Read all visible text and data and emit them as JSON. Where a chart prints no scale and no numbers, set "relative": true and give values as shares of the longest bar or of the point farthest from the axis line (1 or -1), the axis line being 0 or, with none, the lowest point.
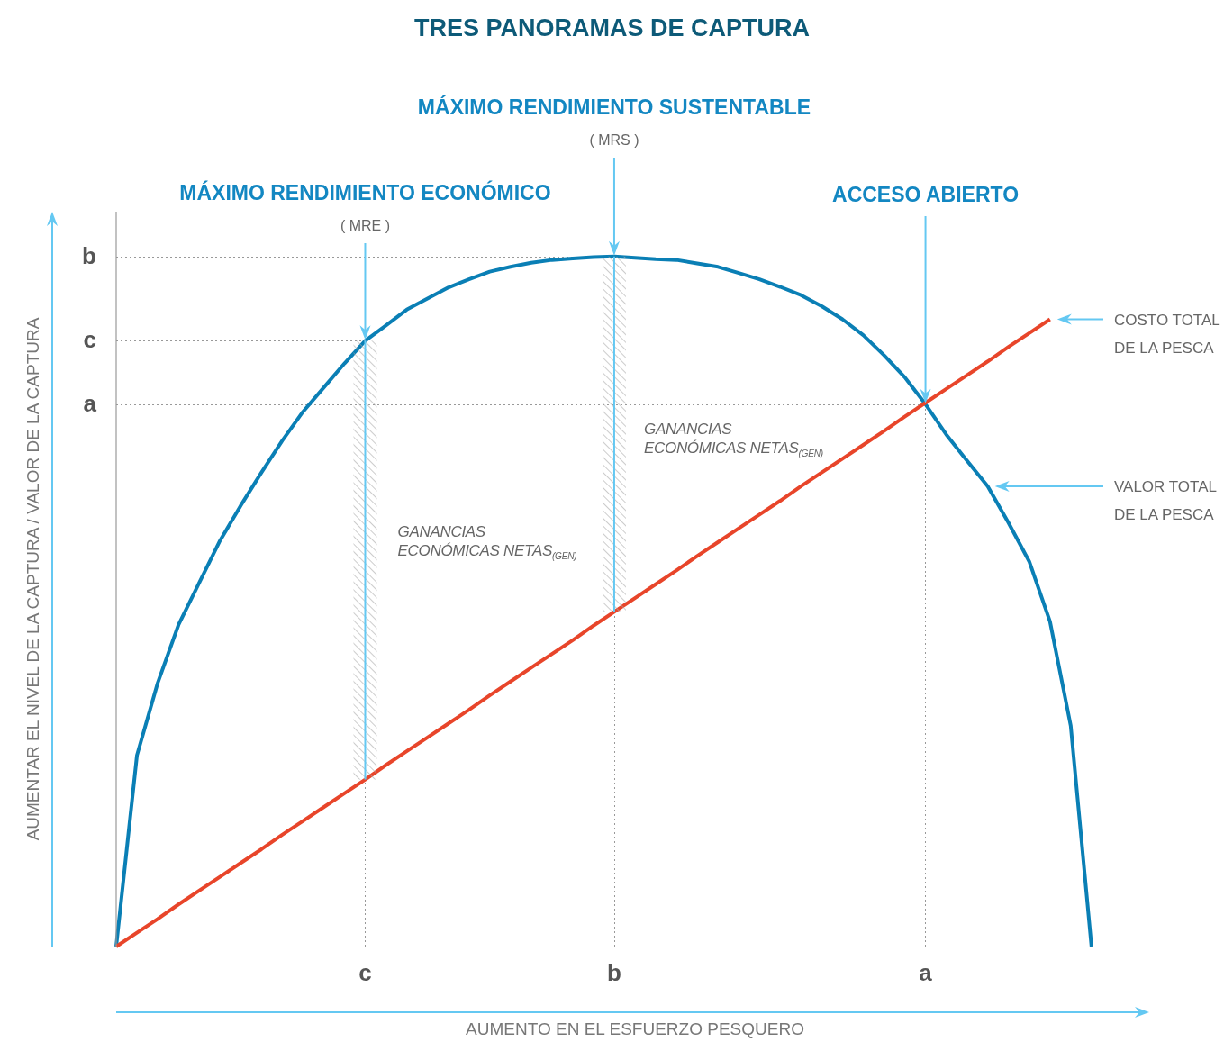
{
  "chart_data": {
    "type": "line",
    "title": "TRES PANORAMAS DE CAPTURA",
    "xlabel": "AUMENTO EN EL ESFUERZO PESQUERO",
    "ylabel": "AUMENTAR EL NIVEL DE LA CAPTURA / VALOR DE LA CAPTURA",
    "relative": true,
    "grid": false,
    "marker": "none",
    "line_style": "solid",
    "categories": [
      null,
      null,
      null,
      null,
      null,
      null,
      null,
      null,
      null,
      null,
      null,
      null,
      null,
      null,
      null,
      null,
      null,
      null,
      null,
      null,
      null,
      null,
      null,
      null,
      null,
      null,
      null,
      null,
      null,
      null,
      null,
      null,
      null,
      null,
      null,
      null,
      null,
      null,
      null,
      null,
      null,
      null,
      null,
      null,
      null,
      null,
      null,
      null,
      null,
      null,
      null
    ],
    "series": [
      {
        "color": "#0a7fb5",
        "values": [
          0,
          0.277,
          0.382,
          0.466,
          0.527,
          0.588,
          0.639,
          0.687,
          0.733,
          0.775,
          0.81,
          0.845,
          0.878,
          0.9,
          0.923,
          0.939,
          0.955,
          0.967,
          0.978,
          0.985,
          0.991,
          0.995,
          0.997,
          0.999,
          1,
          0.998,
          0.996,
          0.995,
          0.99,
          0.985,
          0.976,
          0.967,
          0.956,
          0.944,
          0.928,
          0.909,
          0.886,
          0.857,
          0.825,
          0.786,
          0.742,
          0.704,
          0.667,
          0.614,
          0.558,
          0.471,
          0.32,
          0,
          null,
          null,
          null
        ]
      },
      {
        "color": "#e8452a",
        "values": [
          0,
          0.02,
          0.04,
          0.061,
          0.081,
          0.101,
          0.121,
          0.141,
          0.162,
          0.182,
          0.202,
          0.222,
          0.242,
          0.263,
          0.283,
          0.303,
          0.323,
          0.343,
          0.364,
          0.384,
          0.404,
          0.424,
          0.444,
          0.465,
          0.485,
          0.505,
          0.525,
          0.545,
          0.566,
          0.586,
          0.606,
          0.626,
          0.646,
          0.667,
          0.687,
          0.707,
          0.727,
          0.747,
          0.768,
          0.788,
          0.808,
          0.828,
          0.848,
          0.869,
          0.889,
          0.909,
          null,
          null,
          null,
          null,
          null
        ]
      }
    ],
    "annotations": [
      "MÁXIMO RENDIMIENTO ECONÓMICO",
      "( MRE )",
      "MÁXIMO RENDIMIENTO SUSTENTABLE",
      "( MRS )",
      "ACCESO ABIERTO",
      "COSTO TOTAL DE LA PESCA",
      "VALOR TOTAL DE LA PESCA",
      "GANANCIAS ECONÓMICAS NETAS$_{(GEN)}$",
      "GANANCIAS ECONÓMICAS NETAS$_{(GEN)}$",
      "c",
      "b",
      "a",
      "b",
      "c",
      "a"
    ]
  }
}
